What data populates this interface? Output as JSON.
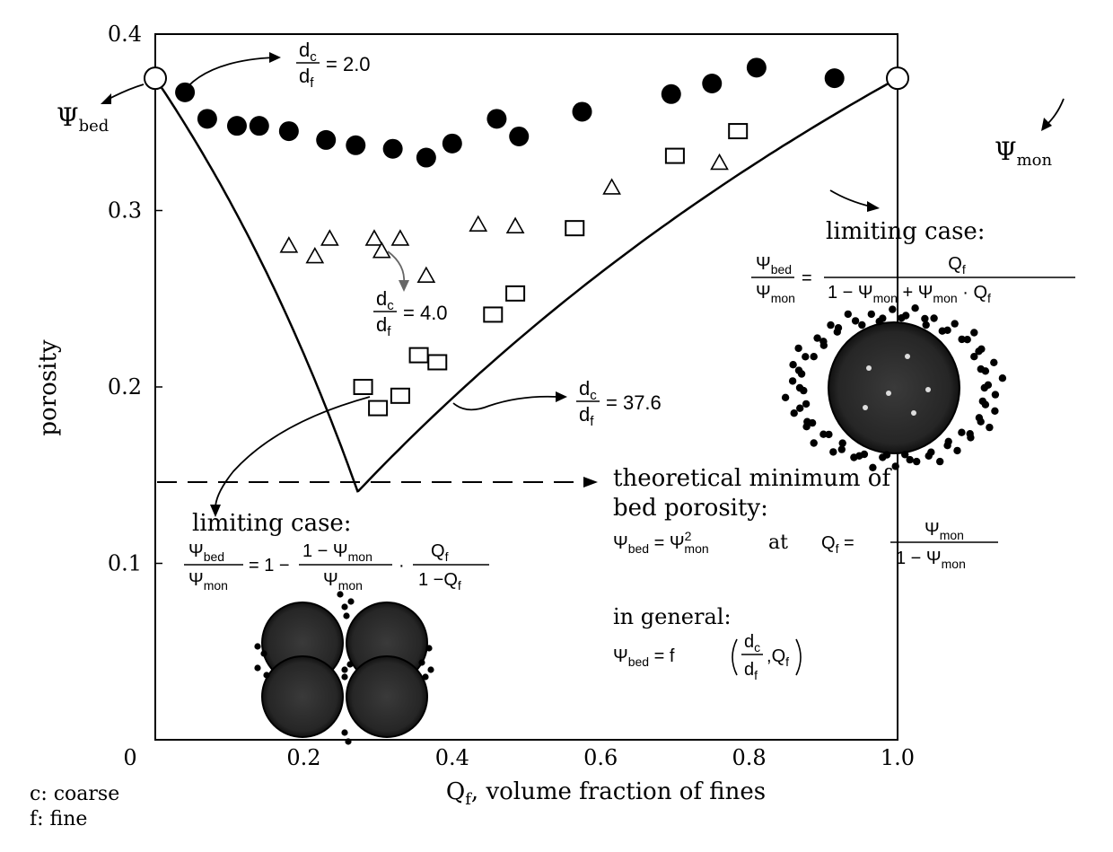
{
  "chart_data": {
    "type": "scatter",
    "xlabel_main": "Q",
    "xlabel_sub": "f",
    "xlabel_rest": ", volume fraction of fines",
    "ylabel": "porosity",
    "xlim": [
      0,
      1.0
    ],
    "ylim": [
      0,
      0.4
    ],
    "x_ticks": [
      {
        "value": 0,
        "label": "0"
      },
      {
        "value": 0.2,
        "label": "0.2"
      },
      {
        "value": 0.4,
        "label": "0.4"
      },
      {
        "value": 0.6,
        "label": "0.6"
      },
      {
        "value": 0.8,
        "label": "0.8"
      },
      {
        "value": 1.0,
        "label": "1.0"
      }
    ],
    "y_ticks": [
      {
        "value": 0.1,
        "label": "0.1"
      },
      {
        "value": 0.2,
        "label": "0.2"
      },
      {
        "value": 0.3,
        "label": "0.3"
      },
      {
        "value": 0.4,
        "label": "0.4"
      }
    ],
    "psi_mon": 0.375,
    "series": [
      {
        "marker": "filled-circle",
        "x": [
          0.04,
          0.07,
          0.11,
          0.14,
          0.18,
          0.23,
          0.27,
          0.32,
          0.365,
          0.4,
          0.46,
          0.49,
          0.575,
          0.695,
          0.75,
          0.81,
          0.915
        ],
        "y": [
          0.367,
          0.352,
          0.348,
          0.348,
          0.345,
          0.34,
          0.337,
          0.335,
          0.33,
          0.338,
          0.352,
          0.342,
          0.356,
          0.366,
          0.372,
          0.381,
          0.375
        ]
      },
      {
        "marker": "open-triangle",
        "x": [
          0.18,
          0.215,
          0.235,
          0.295,
          0.305,
          0.33,
          0.365,
          0.435,
          0.485,
          0.615,
          0.76
        ],
        "y": [
          0.28,
          0.274,
          0.284,
          0.284,
          0.277,
          0.284,
          0.263,
          0.292,
          0.291,
          0.313,
          0.327
        ]
      },
      {
        "marker": "open-square",
        "x": [
          0.28,
          0.3,
          0.33,
          0.355,
          0.38,
          0.455,
          0.485,
          0.565,
          0.7,
          0.785
        ],
        "y": [
          0.2,
          0.188,
          0.195,
          0.218,
          0.214,
          0.241,
          0.253,
          0.29,
          0.331,
          0.345
        ]
      }
    ],
    "endpoint_left": {
      "x": 0,
      "y": 0.375
    },
    "endpoint_right": {
      "x": 1.0,
      "y": 0.375
    },
    "min_point": {
      "x": 0.273,
      "y": 0.1464
    }
  },
  "labels": {
    "psi": "Ψ",
    "bed": "bed",
    "mon": "mon",
    "dc_num": "d",
    "dc_sub": "c",
    "df_den": "d",
    "df_sub": "f",
    "ratio1": "= 2.0",
    "ratio2": "= 4.0",
    "ratio3": "= 37.6",
    "limiting_case": "limiting case:",
    "theoretical_line1": "theoretical minimum of",
    "theoretical_line2": "bed porosity:",
    "in_general": "in general:",
    "at": "at",
    "q": "Q",
    "f": "f",
    "one": "1",
    "one_minus": "1 −",
    "plus": "+",
    "dot": "·",
    "equals": "=",
    "one_equals_minus": "= 1 −",
    "f_paren": "= f",
    "comma": ",",
    "sq": "2",
    "legend_c": "c:  coarse",
    "legend_f": "f:  fine"
  }
}
